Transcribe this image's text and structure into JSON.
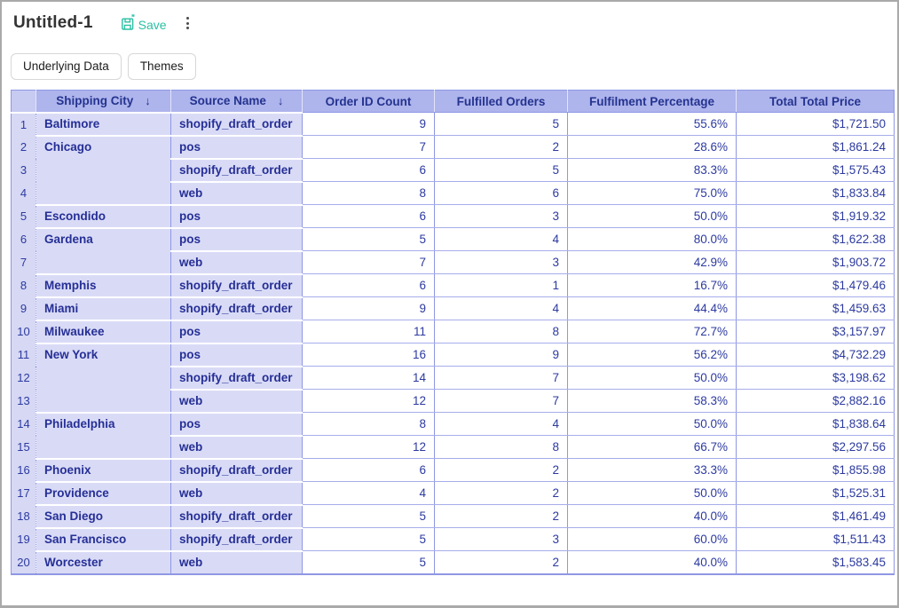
{
  "header": {
    "title": "Untitled-1",
    "save_label": "Save"
  },
  "toolbar": {
    "underlying_data_label": "Underlying Data",
    "themes_label": "Themes"
  },
  "table": {
    "sort_glyph": "↓",
    "columns": [
      {
        "label": "Shipping City",
        "sorted": true
      },
      {
        "label": "Source Name",
        "sorted": true
      },
      {
        "label": "Order ID Count",
        "sorted": false
      },
      {
        "label": "Fulfilled Orders",
        "sorted": false
      },
      {
        "label": "Fulfilment Percentage",
        "sorted": false
      },
      {
        "label": "Total Total Price",
        "sorted": false
      }
    ],
    "rows": [
      {
        "n": "1",
        "city": "Baltimore",
        "city_span": 1,
        "source": "shopify_draft_order",
        "orders": "9",
        "fulfilled": "5",
        "pct": "55.6%",
        "total": "$1,721.50"
      },
      {
        "n": "2",
        "city": "Chicago",
        "city_span": 3,
        "source": "pos",
        "orders": "7",
        "fulfilled": "2",
        "pct": "28.6%",
        "total": "$1,861.24"
      },
      {
        "n": "3",
        "city": "",
        "city_span": 0,
        "source": "shopify_draft_order",
        "orders": "6",
        "fulfilled": "5",
        "pct": "83.3%",
        "total": "$1,575.43"
      },
      {
        "n": "4",
        "city": "",
        "city_span": 0,
        "source": "web",
        "orders": "8",
        "fulfilled": "6",
        "pct": "75.0%",
        "total": "$1,833.84"
      },
      {
        "n": "5",
        "city": "Escondido",
        "city_span": 1,
        "source": "pos",
        "orders": "6",
        "fulfilled": "3",
        "pct": "50.0%",
        "total": "$1,919.32"
      },
      {
        "n": "6",
        "city": "Gardena",
        "city_span": 2,
        "source": "pos",
        "orders": "5",
        "fulfilled": "4",
        "pct": "80.0%",
        "total": "$1,622.38"
      },
      {
        "n": "7",
        "city": "",
        "city_span": 0,
        "source": "web",
        "orders": "7",
        "fulfilled": "3",
        "pct": "42.9%",
        "total": "$1,903.72"
      },
      {
        "n": "8",
        "city": "Memphis",
        "city_span": 1,
        "source": "shopify_draft_order",
        "orders": "6",
        "fulfilled": "1",
        "pct": "16.7%",
        "total": "$1,479.46"
      },
      {
        "n": "9",
        "city": "Miami",
        "city_span": 1,
        "source": "shopify_draft_order",
        "orders": "9",
        "fulfilled": "4",
        "pct": "44.4%",
        "total": "$1,459.63"
      },
      {
        "n": "10",
        "city": "Milwaukee",
        "city_span": 1,
        "source": "pos",
        "orders": "11",
        "fulfilled": "8",
        "pct": "72.7%",
        "total": "$3,157.97"
      },
      {
        "n": "11",
        "city": "New York",
        "city_span": 3,
        "source": "pos",
        "orders": "16",
        "fulfilled": "9",
        "pct": "56.2%",
        "total": "$4,732.29"
      },
      {
        "n": "12",
        "city": "",
        "city_span": 0,
        "source": "shopify_draft_order",
        "orders": "14",
        "fulfilled": "7",
        "pct": "50.0%",
        "total": "$3,198.62"
      },
      {
        "n": "13",
        "city": "",
        "city_span": 0,
        "source": "web",
        "orders": "12",
        "fulfilled": "7",
        "pct": "58.3%",
        "total": "$2,882.16"
      },
      {
        "n": "14",
        "city": "Philadelphia",
        "city_span": 2,
        "source": "pos",
        "orders": "8",
        "fulfilled": "4",
        "pct": "50.0%",
        "total": "$1,838.64"
      },
      {
        "n": "15",
        "city": "",
        "city_span": 0,
        "source": "web",
        "orders": "12",
        "fulfilled": "8",
        "pct": "66.7%",
        "total": "$2,297.56"
      },
      {
        "n": "16",
        "city": "Phoenix",
        "city_span": 1,
        "source": "shopify_draft_order",
        "orders": "6",
        "fulfilled": "2",
        "pct": "33.3%",
        "total": "$1,855.98"
      },
      {
        "n": "17",
        "city": "Providence",
        "city_span": 1,
        "source": "web",
        "orders": "4",
        "fulfilled": "2",
        "pct": "50.0%",
        "total": "$1,525.31"
      },
      {
        "n": "18",
        "city": "San Diego",
        "city_span": 1,
        "source": "shopify_draft_order",
        "orders": "5",
        "fulfilled": "2",
        "pct": "40.0%",
        "total": "$1,461.49"
      },
      {
        "n": "19",
        "city": "San Francisco",
        "city_span": 1,
        "source": "shopify_draft_order",
        "orders": "5",
        "fulfilled": "3",
        "pct": "60.0%",
        "total": "$1,511.43"
      },
      {
        "n": "20",
        "city": "Worcester",
        "city_span": 1,
        "source": "web",
        "orders": "5",
        "fulfilled": "2",
        "pct": "40.0%",
        "total": "$1,583.45"
      }
    ]
  },
  "colors": {
    "accent_teal": "#2abfa4",
    "header_bg": "#aeb4ec",
    "corner_bg": "#c7caf1",
    "group_cell_bg": "#d9dbf6",
    "row_number_bg": "#d6d8f4",
    "grid_border": "#8f97e3",
    "row_divider": "#a7adeb",
    "text_navy": "#2c3aa0",
    "header_text_navy": "#24338f",
    "window_border": "#aaaaaa"
  }
}
